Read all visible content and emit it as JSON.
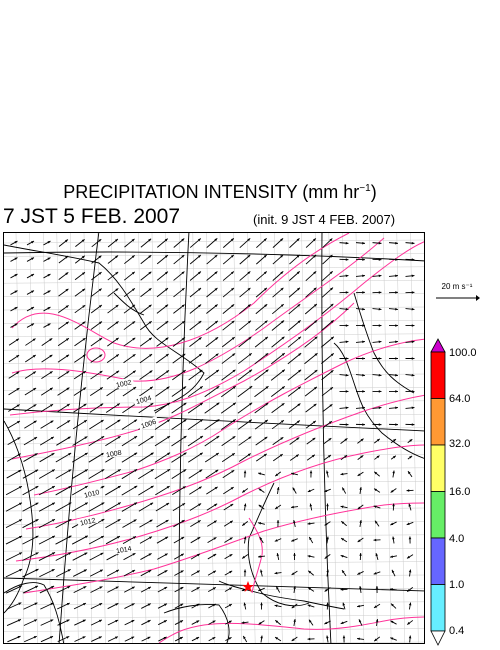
{
  "title": {
    "prefix": "PRECIPITATION INTENSITY (mm hr",
    "exponent": "−1",
    "suffix": ")"
  },
  "valid_time": "7 JST 5 FEB. 2007",
  "init_time": "(init. 9 JST 4 FEB. 2007)",
  "reference_vector": {
    "label": "20 m s⁻¹",
    "speed_value": 20,
    "unit": "m s-1"
  },
  "colorbar": {
    "labels": [
      "100.0",
      "64.0",
      "32.0",
      "16.0",
      "4.0",
      "1.0",
      "0.4"
    ],
    "colors": [
      "#cc00cc",
      "#ff0000",
      "#ff9933",
      "#ffff66",
      "#66ee66",
      "#6666ff",
      "#66eeff",
      "#ffffff"
    ]
  },
  "isobars": {
    "color": "#ff3399",
    "labels": [
      "1002",
      "1004",
      "1006",
      "1008",
      "1010",
      "1012",
      "1014"
    ]
  },
  "marker": {
    "icon": "star-marker-icon",
    "color": "#ff0000"
  }
}
